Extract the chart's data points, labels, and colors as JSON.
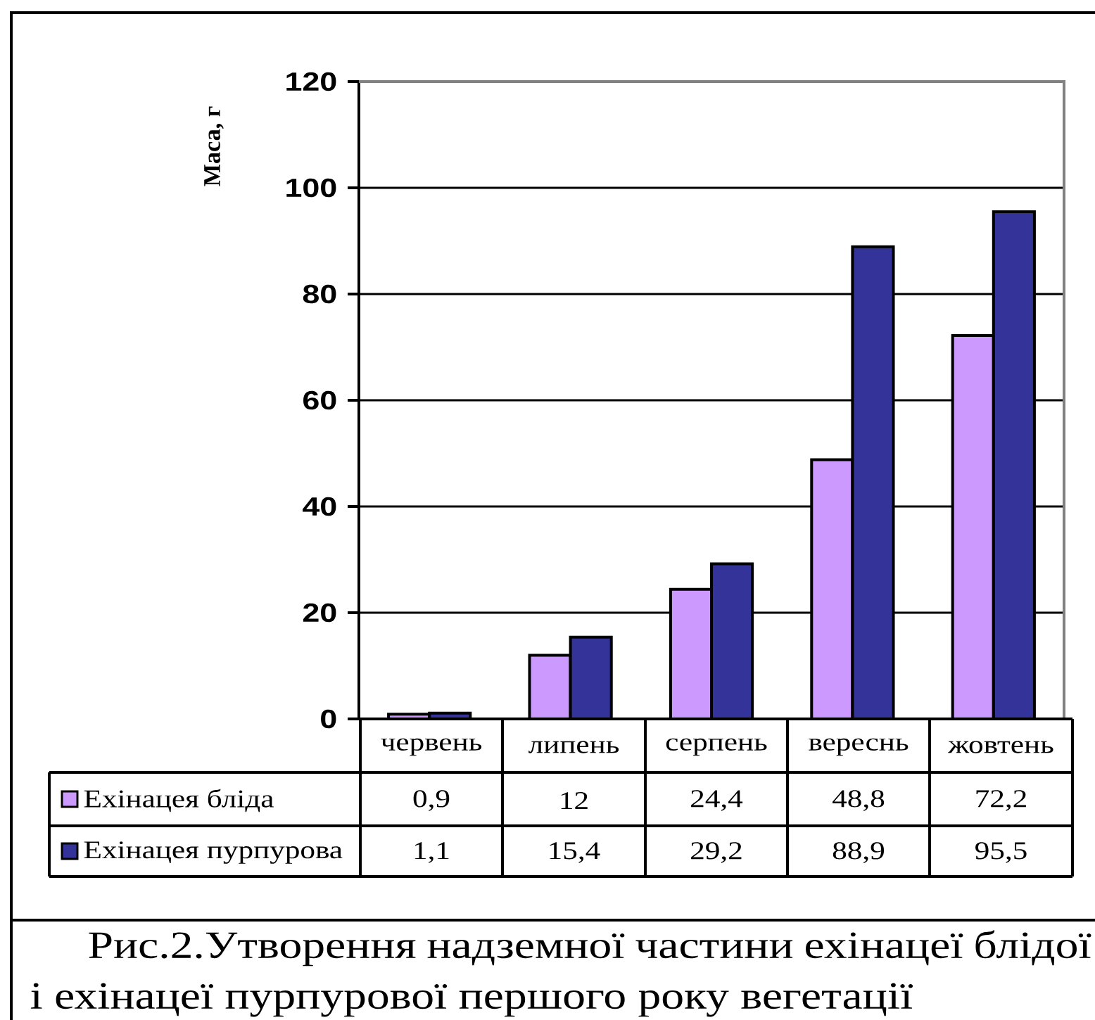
{
  "chart_data": {
    "type": "bar",
    "ylabel": "Маса, г",
    "annotations": [
      "Рис.2.Утворення надземної частини ехінацеї блідої і ехінацеї пурпурової першого року вегетації"
    ],
    "categories": [
      "червень",
      "липень",
      "серпень",
      "вереснь",
      "жовтень"
    ],
    "series": [
      {
        "name": "Ехінацея бліда",
        "color": "#cc99ff",
        "values": [
          0.9,
          12,
          24.4,
          48.8,
          72.2
        ],
        "value_labels": [
          "0,9",
          "12",
          "24,4",
          "48,8",
          "72,2"
        ]
      },
      {
        "name": "Ехінацея пурпурова",
        "color": "#333399",
        "values": [
          1.1,
          15.4,
          29.2,
          88.9,
          95.5
        ],
        "value_labels": [
          "1,1",
          "15,4",
          "29,2",
          "88,9",
          "95,5"
        ]
      }
    ],
    "ylim": [
      0,
      120
    ],
    "yticks": [
      0,
      20,
      40,
      60,
      80,
      100,
      120
    ],
    "grid": "y",
    "legend": "bottom"
  }
}
